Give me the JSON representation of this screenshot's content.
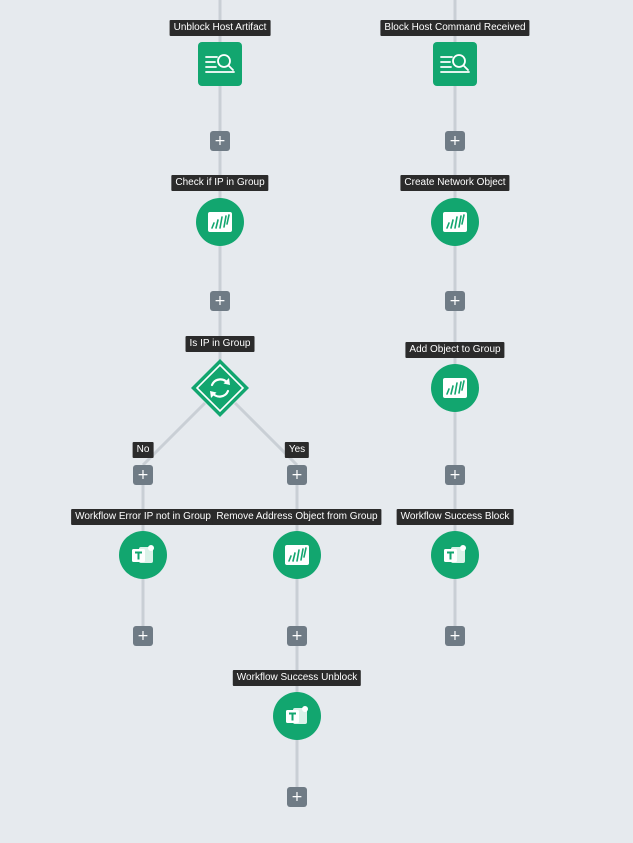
{
  "colors": {
    "background": "#e6eaee",
    "node_green": "#12a66f",
    "connector": "#c9cfd5",
    "add_button": "#6f7b85",
    "label_bg": "#2b2b2b"
  },
  "add_button_symbol": "+",
  "nodes": {
    "unblock_host_artifact": {
      "label": "Unblock Host Artifact",
      "icon": "search-doc-icon"
    },
    "block_host_command": {
      "label": "Block Host Command Received",
      "icon": "search-doc-icon"
    },
    "check_ip_in_group": {
      "label": "Check if IP in Group",
      "icon": "palo-alto-icon"
    },
    "create_network_object": {
      "label": "Create Network Object",
      "icon": "palo-alto-icon"
    },
    "is_ip_in_group": {
      "label": "Is IP in Group",
      "icon": "refresh-icon"
    },
    "add_object_to_group": {
      "label": "Add Object to Group",
      "icon": "palo-alto-icon"
    },
    "workflow_error_ip": {
      "label": "Workflow Error IP not in Group",
      "icon": "teams-icon"
    },
    "remove_address_object": {
      "label": "Remove Address Object from Group",
      "icon": "palo-alto-icon"
    },
    "workflow_success_block": {
      "label": "Workflow Success Block",
      "icon": "teams-icon"
    },
    "workflow_success_unblock": {
      "label": "Workflow Success Unblock",
      "icon": "teams-icon"
    }
  },
  "branches": {
    "no": "No",
    "yes": "Yes"
  }
}
